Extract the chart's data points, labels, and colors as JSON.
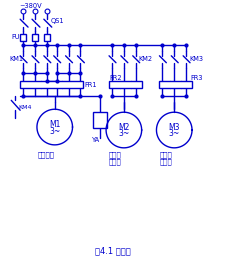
{
  "bg_color": "#ffffff",
  "line_color": "#0000cd",
  "text_color": "#0000cd",
  "fig_width": 2.27,
  "fig_height": 2.64,
  "dpi": 100,
  "voltage": "~380V",
  "qs1": "QS1",
  "fu": "FU",
  "km1": "KM1",
  "km2": "KM2",
  "km3": "KM3",
  "km4": "KM4",
  "fr1": "FR1",
  "fr2": "FR2",
  "fr3": "FR3",
  "ya": "YA",
  "m1_line1": "M1",
  "m1_line2": "3~",
  "m2_line1": "M2",
  "m2_line2": "3~",
  "m3_line1": "M3",
  "m3_line2": "3~",
  "label1_l1": "滑台电机",
  "label2_l1": "左动力",
  "label2_l2": "头电机",
  "label3_l1": "右动力",
  "label3_l2": "头电机",
  "title": "图4.1 主电路"
}
